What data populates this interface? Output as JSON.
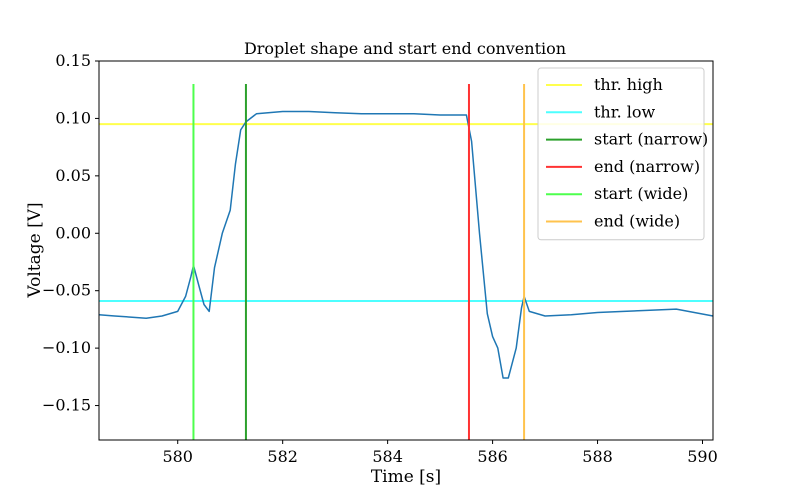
{
  "chart_data": {
    "type": "line",
    "title": "Droplet shape and start end convention",
    "xlabel": "Time [s]",
    "ylabel": "Voltage [V]",
    "xlim": [
      578.5,
      590.2
    ],
    "ylim": [
      -0.18,
      0.15
    ],
    "x_ticks": [
      580,
      582,
      584,
      586,
      588,
      590
    ],
    "x_tick_labels": [
      "580",
      "582",
      "584",
      "586",
      "588",
      "590"
    ],
    "y_ticks": [
      -0.15,
      -0.1,
      -0.05,
      0.0,
      0.05,
      0.1,
      0.15
    ],
    "y_tick_labels": [
      "−0.15",
      "−0.10",
      "−0.05",
      "0.00",
      "0.05",
      "0.10",
      "0.15"
    ],
    "grid": false,
    "legend_position": "top-right",
    "signal": {
      "color": "#1f77b4",
      "x": [
        578.5,
        578.8,
        579.1,
        579.4,
        579.7,
        580.0,
        580.15,
        580.25,
        580.3,
        580.4,
        580.5,
        580.6,
        580.7,
        580.85,
        581.0,
        581.1,
        581.2,
        581.3,
        581.5,
        582.0,
        582.5,
        583.0,
        583.5,
        584.0,
        584.5,
        585.0,
        585.5,
        585.6,
        585.75,
        585.9,
        586.0,
        586.1,
        586.2,
        586.3,
        586.45,
        586.55,
        586.6,
        586.7,
        587.0,
        587.5,
        588.0,
        588.5,
        589.0,
        589.5,
        590.2
      ],
      "y": [
        -0.071,
        -0.072,
        -0.073,
        -0.074,
        -0.072,
        -0.068,
        -0.055,
        -0.038,
        -0.028,
        -0.045,
        -0.062,
        -0.068,
        -0.03,
        0.0,
        0.02,
        0.06,
        0.09,
        0.097,
        0.104,
        0.106,
        0.106,
        0.105,
        0.104,
        0.104,
        0.104,
        0.103,
        0.103,
        0.08,
        0.0,
        -0.07,
        -0.09,
        -0.1,
        -0.126,
        -0.126,
        -0.1,
        -0.065,
        -0.055,
        -0.068,
        -0.072,
        -0.071,
        -0.069,
        -0.068,
        -0.067,
        -0.066,
        -0.072
      ]
    },
    "hlines": [
      {
        "name": "thr. high",
        "y": 0.095,
        "color": "#ffff4d"
      },
      {
        "name": "thr. low",
        "y": -0.059,
        "color": "#4dffff"
      }
    ],
    "vlines": [
      {
        "name": "start (narrow)",
        "x": 581.3,
        "color": "#2ca02c"
      },
      {
        "name": "end (narrow)",
        "x": 585.55,
        "color": "#ff3333"
      },
      {
        "name": "start (wide)",
        "x": 580.3,
        "color": "#4dff4d"
      },
      {
        "name": "end (wide)",
        "x": 586.6,
        "color": "#ffc34d"
      }
    ],
    "vline_ylim": [
      -0.18,
      0.13
    ],
    "legend": [
      {
        "label": "thr.  high",
        "color": "#ffff4d"
      },
      {
        "label": "thr.  low",
        "color": "#4dffff"
      },
      {
        "label": "start (narrow)",
        "color": "#2ca02c"
      },
      {
        "label": "end (narrow)",
        "color": "#ff3333"
      },
      {
        "label": "start (wide)",
        "color": "#4dff4d"
      },
      {
        "label": "end (wide)",
        "color": "#ffc34d"
      }
    ]
  }
}
